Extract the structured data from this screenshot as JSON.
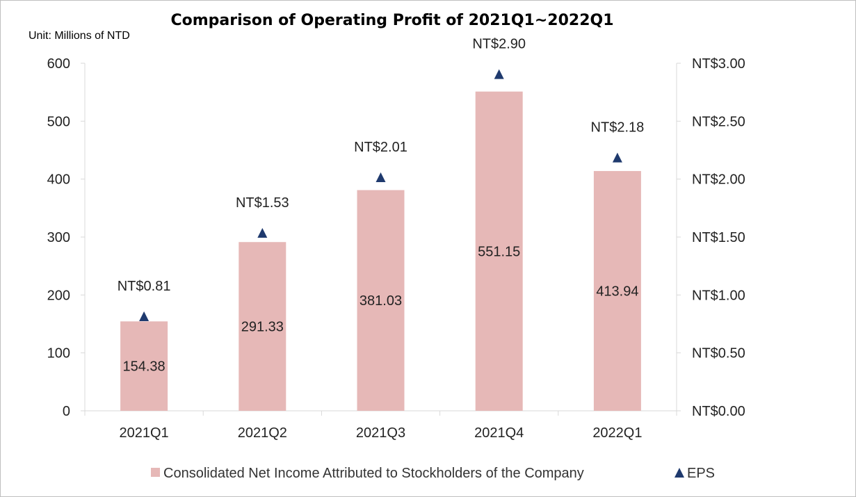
{
  "chart_data": {
    "type": "bar",
    "title": "Comparison of Operating Profit of 2021Q1~2022Q1",
    "unit_note": "Unit: Millions of NTD",
    "categories": [
      "2021Q1",
      "2021Q2",
      "2021Q3",
      "2021Q4",
      "2022Q1"
    ],
    "series": [
      {
        "name": "Consolidated Net Income Attributed to Stockholders of the Company",
        "type": "bar",
        "axis": "left",
        "values": [
          154.38,
          291.33,
          381.03,
          551.15,
          413.94
        ],
        "value_labels": [
          "154.38",
          "291.33",
          "381.03",
          "551.15",
          "413.94"
        ],
        "color": "#e6b8b7"
      },
      {
        "name": "EPS",
        "type": "scatter",
        "marker": "triangle",
        "axis": "right",
        "values": [
          0.81,
          1.53,
          2.01,
          2.9,
          2.18
        ],
        "value_labels": [
          "NT$0.81",
          "NT$1.53",
          "NT$2.01",
          "NT$2.90",
          "NT$2.18"
        ],
        "color": "#1f3a6e"
      }
    ],
    "left_axis": {
      "ylim": [
        0,
        600
      ],
      "ticks": [
        0,
        100,
        200,
        300,
        400,
        500,
        600
      ],
      "tick_labels": [
        "0",
        "100",
        "200",
        "300",
        "400",
        "500",
        "600"
      ]
    },
    "right_axis": {
      "ylim": [
        0,
        3.0
      ],
      "ticks": [
        0,
        0.5,
        1.0,
        1.5,
        2.0,
        2.5,
        3.0
      ],
      "tick_labels": [
        "NT$0.00",
        "NT$0.50",
        "NT$1.00",
        "NT$1.50",
        "NT$2.00",
        "NT$2.50",
        "NT$3.00"
      ]
    },
    "xlabel": "",
    "ylabel": "",
    "grid": false,
    "legend_position": "bottom"
  }
}
